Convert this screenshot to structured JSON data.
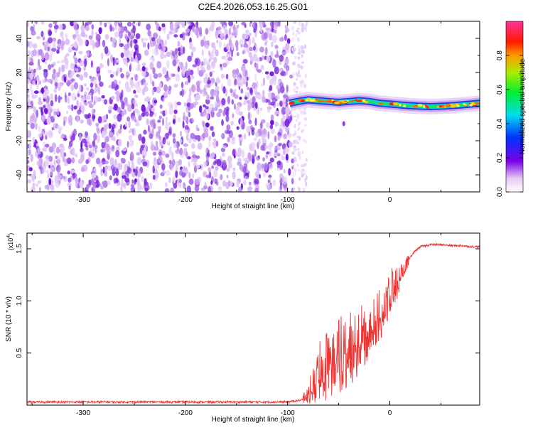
{
  "title": "C2E4.2026.053.16.25.G01",
  "chart_data": [
    {
      "type": "heatmap",
      "title": "C2E4.2026.053.16.25.G01",
      "xlabel": "Height of straight line (km)",
      "ylabel": "Frequency (Hz)",
      "xlim": [
        -355,
        88
      ],
      "ylim": [
        -50,
        50
      ],
      "xticks": [
        -300,
        -200,
        -100,
        0
      ],
      "yticks": [
        -40,
        -20,
        0,
        20,
        40
      ],
      "noise_region_x": [
        -355,
        -95
      ],
      "signal_track": {
        "x": [
          -98,
          -90,
          -80,
          -70,
          -60,
          -50,
          -40,
          -30,
          -20,
          -10,
          0,
          10,
          20,
          30,
          40,
          50,
          60,
          70,
          80,
          88
        ],
        "freq": [
          2,
          3,
          4,
          3.5,
          3,
          2.5,
          3,
          3.5,
          3,
          2,
          1.5,
          1,
          0.5,
          0.2,
          0,
          0.2,
          0.5,
          1,
          1.5,
          2
        ]
      },
      "colorbar": {
        "label": "Normalized spectral amplitude",
        "range": [
          0.0,
          1.0
        ],
        "ticks": [
          0.0,
          0.2,
          0.4,
          0.6,
          0.8
        ],
        "tick_labels": [
          "0.0",
          "0.2",
          "0.4",
          "0.6",
          "0.8"
        ]
      }
    },
    {
      "type": "line",
      "xlabel": "Height of straight line (km)",
      "ylabel": "SNR (10 * v/v)",
      "y_multiplier": "(x10",
      "y_multiplier_exp": "4",
      "y_multiplier_close": ")",
      "xlim": [
        -355,
        88
      ],
      "ylim": [
        0,
        1.65
      ],
      "xticks": [
        -300,
        -200,
        -100,
        0
      ],
      "yticks": [
        0.5,
        1.0,
        1.5
      ],
      "ytick_labels": [
        "0.5",
        "1.0",
        "1.5"
      ],
      "series": [
        {
          "name": "SNR",
          "color": "#ee3333",
          "x": [
            -355,
            -100,
            -85,
            -80,
            -75,
            -70,
            -65,
            -60,
            -55,
            -50,
            -45,
            -40,
            -35,
            -30,
            -25,
            -20,
            -15,
            -10,
            -5,
            0,
            5,
            10,
            15,
            20,
            25,
            30,
            40,
            50,
            60,
            70,
            80,
            88
          ],
          "y": [
            0.03,
            0.03,
            0.05,
            0.09,
            0.15,
            0.22,
            0.28,
            0.33,
            0.32,
            0.38,
            0.42,
            0.47,
            0.5,
            0.56,
            0.62,
            0.7,
            0.76,
            0.82,
            0.9,
            1.0,
            1.1,
            1.18,
            1.3,
            1.42,
            1.48,
            1.52,
            1.54,
            1.54,
            1.53,
            1.53,
            1.52,
            1.52
          ],
          "noise_band": [
            0.0,
            0.0,
            0.05,
            0.1,
            0.2,
            0.3,
            0.38,
            0.42,
            0.35,
            0.4,
            0.42,
            0.42,
            0.4,
            0.38,
            0.36,
            0.32,
            0.3,
            0.3,
            0.28,
            0.25,
            0.22,
            0.15,
            0.08,
            0.04,
            0.03,
            0.02,
            0.015,
            0.015,
            0.015,
            0.015,
            0.015,
            0.015
          ]
        }
      ]
    }
  ]
}
